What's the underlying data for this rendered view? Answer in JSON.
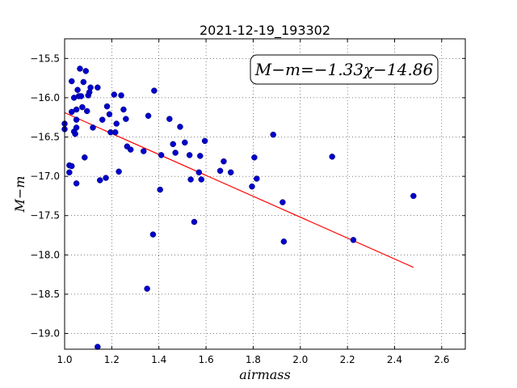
{
  "chart_data": {
    "type": "scatter",
    "title": "2021-12-19_193302",
    "xlabel": "airmass",
    "ylabel": "M−m",
    "xlim": [
      1.0,
      2.7
    ],
    "ylim": [
      -19.2,
      -15.25
    ],
    "y_inverted": true,
    "grid": true,
    "x_ticks": [
      "1.0",
      "1.2",
      "1.4",
      "1.6",
      "1.8",
      "2.0",
      "2.2",
      "2.4",
      "2.6"
    ],
    "y_ticks": [
      "−15.5",
      "−16.0",
      "−16.5",
      "−17.0",
      "−17.5",
      "−18.0",
      "−18.5",
      "−19.0"
    ],
    "annotation": "M−m=−1.33χ−14.86",
    "fit_line": {
      "slope": -1.33,
      "intercept": -14.86,
      "x_range": [
        1.0,
        2.48
      ],
      "color": "#ff0000"
    },
    "point_color": "#0000cc",
    "points": [
      [
        1.0,
        -16.33
      ],
      [
        1.0,
        -16.4
      ],
      [
        1.02,
        -16.86
      ],
      [
        1.02,
        -16.95
      ],
      [
        1.03,
        -16.87
      ],
      [
        1.03,
        -16.18
      ],
      [
        1.03,
        -15.79
      ],
      [
        1.04,
        -16.0
      ],
      [
        1.04,
        -16.43
      ],
      [
        1.045,
        -16.46
      ],
      [
        1.05,
        -16.28
      ],
      [
        1.05,
        -16.38
      ],
      [
        1.05,
        -16.15
      ],
      [
        1.05,
        -17.09
      ],
      [
        1.055,
        -15.9
      ],
      [
        1.06,
        -15.98
      ],
      [
        1.065,
        -15.63
      ],
      [
        1.07,
        -15.98
      ],
      [
        1.075,
        -16.12
      ],
      [
        1.08,
        -15.8
      ],
      [
        1.085,
        -16.76
      ],
      [
        1.09,
        -15.66
      ],
      [
        1.095,
        -16.17
      ],
      [
        1.1,
        -15.97
      ],
      [
        1.105,
        -15.93
      ],
      [
        1.11,
        -15.87
      ],
      [
        1.12,
        -16.38
      ],
      [
        1.14,
        -15.87
      ],
      [
        1.14,
        -19.17
      ],
      [
        1.15,
        -17.05
      ],
      [
        1.16,
        -16.28
      ],
      [
        1.175,
        -17.02
      ],
      [
        1.18,
        -16.11
      ],
      [
        1.19,
        -16.21
      ],
      [
        1.195,
        -16.44
      ],
      [
        1.21,
        -15.96
      ],
      [
        1.215,
        -16.44
      ],
      [
        1.22,
        -16.33
      ],
      [
        1.23,
        -16.94
      ],
      [
        1.24,
        -15.97
      ],
      [
        1.25,
        -16.15
      ],
      [
        1.26,
        -16.27
      ],
      [
        1.265,
        -16.62
      ],
      [
        1.28,
        -16.66
      ],
      [
        1.335,
        -16.68
      ],
      [
        1.35,
        -18.43
      ],
      [
        1.355,
        -16.23
      ],
      [
        1.375,
        -17.74
      ],
      [
        1.38,
        -15.91
      ],
      [
        1.405,
        -17.17
      ],
      [
        1.41,
        -16.73
      ],
      [
        1.445,
        -16.27
      ],
      [
        1.46,
        -16.59
      ],
      [
        1.47,
        -16.7
      ],
      [
        1.49,
        -16.37
      ],
      [
        1.51,
        -16.57
      ],
      [
        1.53,
        -16.73
      ],
      [
        1.535,
        -17.04
      ],
      [
        1.55,
        -17.58
      ],
      [
        1.57,
        -16.95
      ],
      [
        1.575,
        -16.74
      ],
      [
        1.58,
        -17.04
      ],
      [
        1.595,
        -16.55
      ],
      [
        1.66,
        -16.93
      ],
      [
        1.675,
        -16.81
      ],
      [
        1.705,
        -16.95
      ],
      [
        1.795,
        -17.13
      ],
      [
        1.805,
        -16.76
      ],
      [
        1.815,
        -17.03
      ],
      [
        1.885,
        -16.47
      ],
      [
        1.925,
        -17.33
      ],
      [
        1.93,
        -17.83
      ],
      [
        2.135,
        -16.75
      ],
      [
        2.225,
        -17.81
      ],
      [
        2.48,
        -17.25
      ]
    ]
  }
}
